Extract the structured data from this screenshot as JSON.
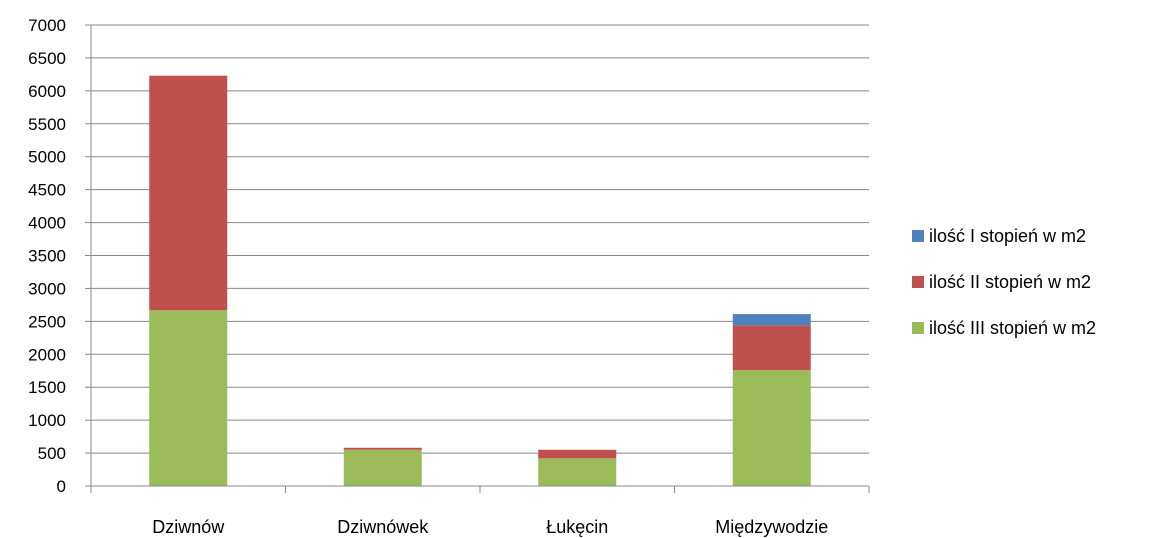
{
  "chart_data": {
    "type": "bar",
    "stacked": true,
    "categories": [
      "Dziwnów",
      "Dziwnówek",
      "Łukęcin",
      "Międzywodzie"
    ],
    "series": [
      {
        "name": "ilość III stopień w m2",
        "color": "#9BBB59",
        "values": [
          2670,
          550,
          420,
          1760
        ]
      },
      {
        "name": "ilość II stopień w m2",
        "color": "#C0504D",
        "values": [
          3560,
          30,
          130,
          680
        ]
      },
      {
        "name": "ilość I stopień w m2",
        "color": "#4F81BD",
        "values": [
          0,
          0,
          0,
          170
        ]
      }
    ],
    "legend_order": [
      "ilość I stopień w m2",
      "ilość II stopień w m2",
      "ilość III stopień w m2"
    ],
    "ylim": [
      0,
      7000
    ],
    "yticks": [
      0,
      500,
      1000,
      1500,
      2000,
      2500,
      3000,
      3500,
      4000,
      4500,
      5000,
      5500,
      6000,
      6500,
      7000
    ],
    "grid": true,
    "legend_position": "right",
    "title": "",
    "xlabel": "",
    "ylabel": ""
  }
}
